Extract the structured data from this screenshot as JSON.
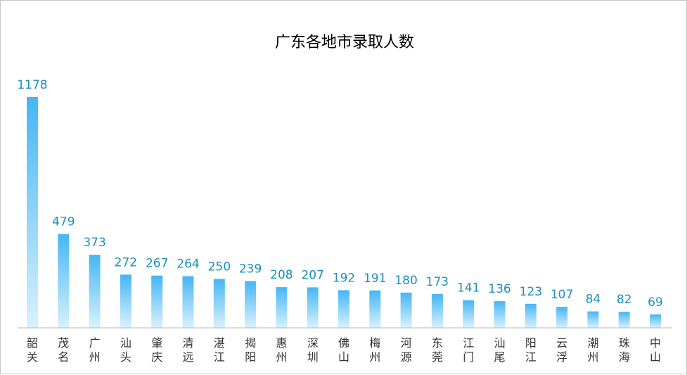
{
  "chart_data": {
    "type": "bar",
    "title": "广东各地市录取人数",
    "categories": [
      "韶关",
      "茂名",
      "广州",
      "汕头",
      "肇庆",
      "清远",
      "湛江",
      "揭阳",
      "惠州",
      "深圳",
      "佛山",
      "梅州",
      "河源",
      "东莞",
      "江门",
      "汕尾",
      "阳江",
      "云浮",
      "潮州",
      "珠海",
      "中山"
    ],
    "values": [
      1178,
      479,
      373,
      272,
      267,
      264,
      250,
      239,
      208,
      207,
      192,
      191,
      180,
      173,
      141,
      136,
      123,
      107,
      84,
      82,
      69
    ],
    "xlabel": "",
    "ylabel": "",
    "ylim": [
      0,
      1178
    ],
    "grid": false,
    "legend": "none",
    "data_labels": true,
    "colors": {
      "bar_top": "#45b6f5",
      "bar_bottom": "#d9f1fd",
      "value_label": "#1a8fbf",
      "axis": "#b8b8b8",
      "category_label": "#333333",
      "title": "#000000"
    }
  }
}
